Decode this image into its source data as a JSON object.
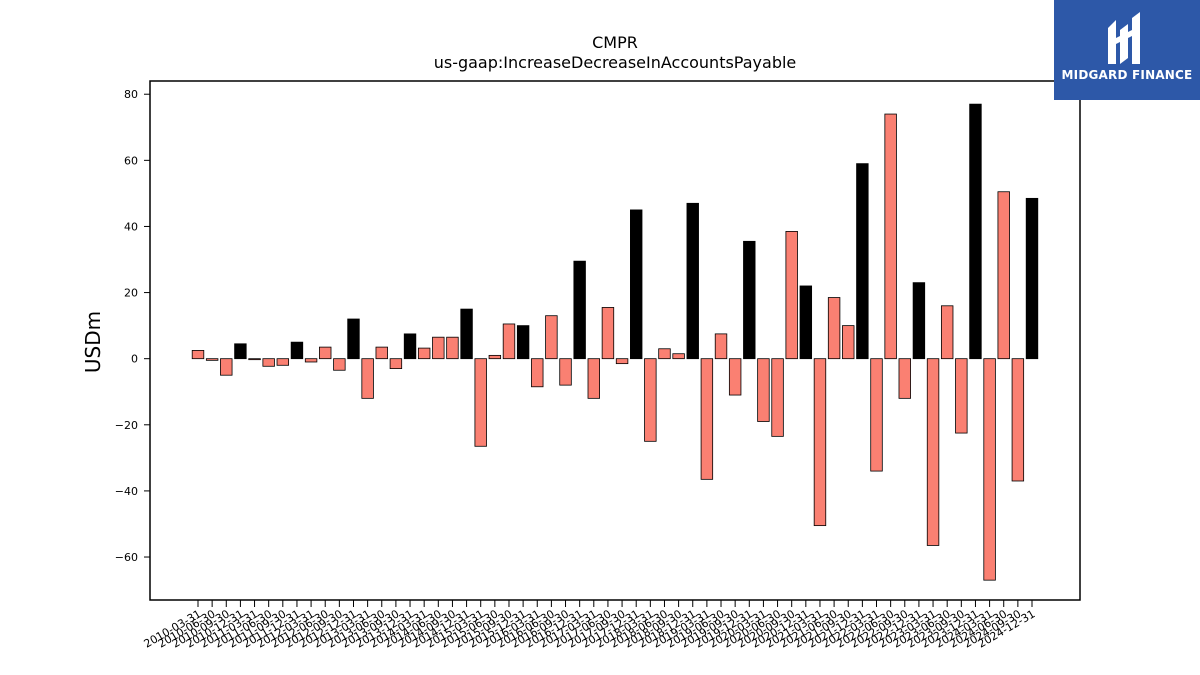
{
  "chart_data": {
    "type": "bar",
    "title": "CMPR",
    "subtitle": "us-gaap:IncreaseDecreaseInAccountsPayable",
    "xlabel": "",
    "ylabel": "USDm",
    "ylim": [
      -73,
      84
    ],
    "yticks": [
      80,
      60,
      40,
      20,
      0,
      -20,
      -40,
      -60
    ],
    "ytick_labels": [
      "80",
      "60",
      "40",
      "20",
      "0",
      "−20",
      "−40",
      "−60"
    ],
    "grid": false,
    "legend": "none",
    "colors": {
      "q4": "#000000",
      "other": "#fa8072",
      "edge": "#000000"
    },
    "categories": [
      "2010-03-31",
      "2010-06-30",
      "2010-09-30",
      "2010-12-31",
      "2011-03-31",
      "2011-06-30",
      "2011-09-30",
      "2011-12-31",
      "2012-03-31",
      "2012-06-30",
      "2012-09-30",
      "2012-12-31",
      "2013-03-31",
      "2013-06-30",
      "2013-09-30",
      "2013-12-31",
      "2014-03-31",
      "2014-06-30",
      "2014-09-30",
      "2014-12-31",
      "2015-03-31",
      "2015-06-30",
      "2015-09-30",
      "2015-12-31",
      "2016-03-31",
      "2016-06-30",
      "2016-09-30",
      "2016-12-31",
      "2017-03-31",
      "2017-06-30",
      "2017-09-30",
      "2017-12-31",
      "2018-03-31",
      "2018-06-30",
      "2018-09-30",
      "2018-12-31",
      "2019-03-31",
      "2019-06-30",
      "2019-09-30",
      "2019-12-31",
      "2020-03-31",
      "2020-06-30",
      "2020-09-30",
      "2020-12-31",
      "2021-03-31",
      "2021-06-30",
      "2021-09-30",
      "2021-12-31",
      "2022-03-31",
      "2022-06-30",
      "2022-09-30",
      "2022-12-31",
      "2023-03-31",
      "2023-06-30",
      "2023-09-30",
      "2023-12-31",
      "2024-03-31",
      "2024-06-30",
      "2024-09-30",
      "2024-12-31"
    ],
    "values": [
      2.5,
      -0.5,
      -5,
      4.5,
      -0.3,
      -2.3,
      -2,
      5,
      -1,
      3.5,
      -3.5,
      12,
      -12,
      3.5,
      -3,
      7.5,
      3.2,
      6.5,
      6.5,
      15,
      -26.5,
      1,
      10.5,
      10,
      -8.5,
      13,
      -8,
      29.5,
      -12,
      15.5,
      -1.5,
      45,
      -25,
      3,
      1.5,
      47,
      -36.5,
      7.5,
      -11,
      35.5,
      -19,
      -23.5,
      38.5,
      22,
      -50.5,
      18.5,
      10,
      59,
      -34,
      74,
      -12,
      23,
      -56.5,
      16,
      -22.5,
      77,
      -67,
      50.5,
      -37,
      48.5
    ],
    "tick_labels_visible": [
      "2010-03-31",
      "2010-06-30",
      "2010-09-30",
      "2010-12-31",
      "2011-03-31",
      "2011-06-30",
      "2011-09-30",
      "2011-12-31",
      "2012-03-31",
      "2012-06-30",
      "2012-09-30",
      "2012-12-31",
      "2013-03-31",
      "2013-06-30",
      "2013-09-30",
      "2013-12-31",
      "2014-03-31",
      "2014-06-30",
      "2014-09-30",
      "2014-12-31",
      "2015-03-31",
      "2015-06-30",
      "2015-09-30",
      "2015-12-31",
      "2016-03-31",
      "2016-06-30",
      "2016-09-30",
      "2016-12-31",
      "2017-03-31",
      "2017-06-30",
      "2017-09-30",
      "2017-12-31",
      "2018-03-31",
      "2018-06-30",
      "2018-09-30",
      "2018-12-31",
      "2019-03-31",
      "2019-06-30",
      "2019-09-30",
      "2019-12-31",
      "2020-03-31",
      "2020-06-30",
      "2020-09-30",
      "2020-12-31",
      "2021-03-31",
      "2021-06-30",
      "2021-09-30",
      "2021-12-31",
      "2022-03-31",
      "2022-06-30",
      "2022-09-30",
      "2022-12-31",
      "2023-03-31",
      "2023-06-30",
      "2023-09-30",
      "2023-12-31",
      "2024-03-31",
      "2024-06-30",
      "2024-09-30",
      "2024-12-31"
    ]
  },
  "logo": {
    "text": "MIDGARD FINANCE",
    "background": "#2d58a8",
    "icon": "midgard-logo-icon"
  }
}
